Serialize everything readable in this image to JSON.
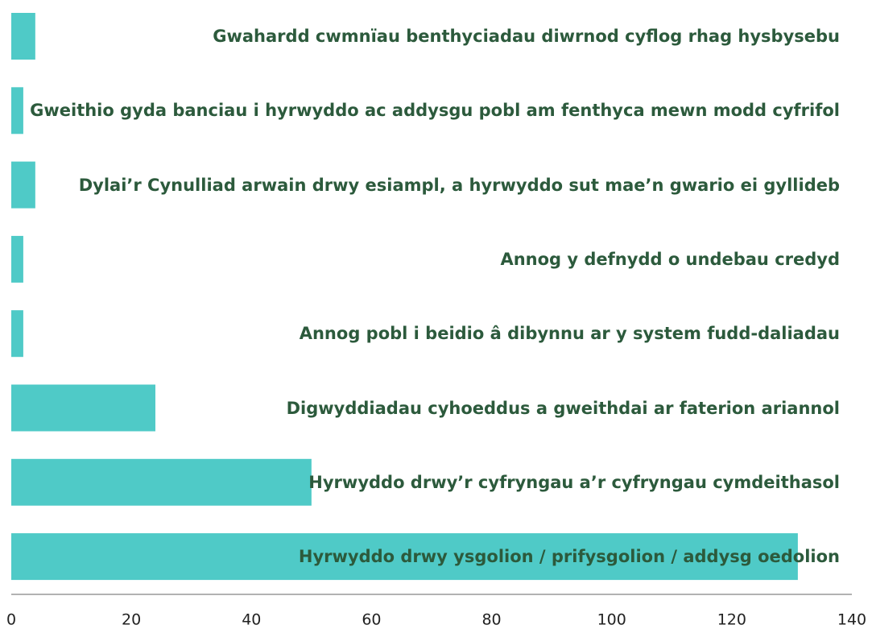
{
  "chart_data": {
    "type": "barh",
    "categories": [
      "Gwahardd cwmnïau benthyciadau diwrnod cyflog rhag hysbysebu",
      "Gweithio gyda banciau i hyrwyddo ac  addysgu pobl am fenthyca mewn modd cyfrifol",
      "Dylai’r Cynulliad arwain drwy esiampl, a hyrwyddo sut mae’n gwario ei gyllideb",
      "Annog y defnydd o undebau credyd",
      "Annog pobl i beidio â dibynnu ar y system fudd-daliadau",
      "Digwyddiadau cyhoeddus a gweithdai ar faterion ariannol",
      "Hyrwyddo drwy’r cyfryngau a’r cyfryngau cymdeithasol",
      "Hyrwyddo drwy ysgolion / prifysgolion / addysg oedolion"
    ],
    "values": [
      4,
      2,
      4,
      2,
      2,
      24,
      50,
      131
    ],
    "color": "#4fcac7",
    "label_color": "#2c5a3c",
    "xlim": [
      0,
      140
    ],
    "xticks": [
      0,
      20,
      40,
      60,
      80,
      100,
      120,
      140
    ]
  }
}
